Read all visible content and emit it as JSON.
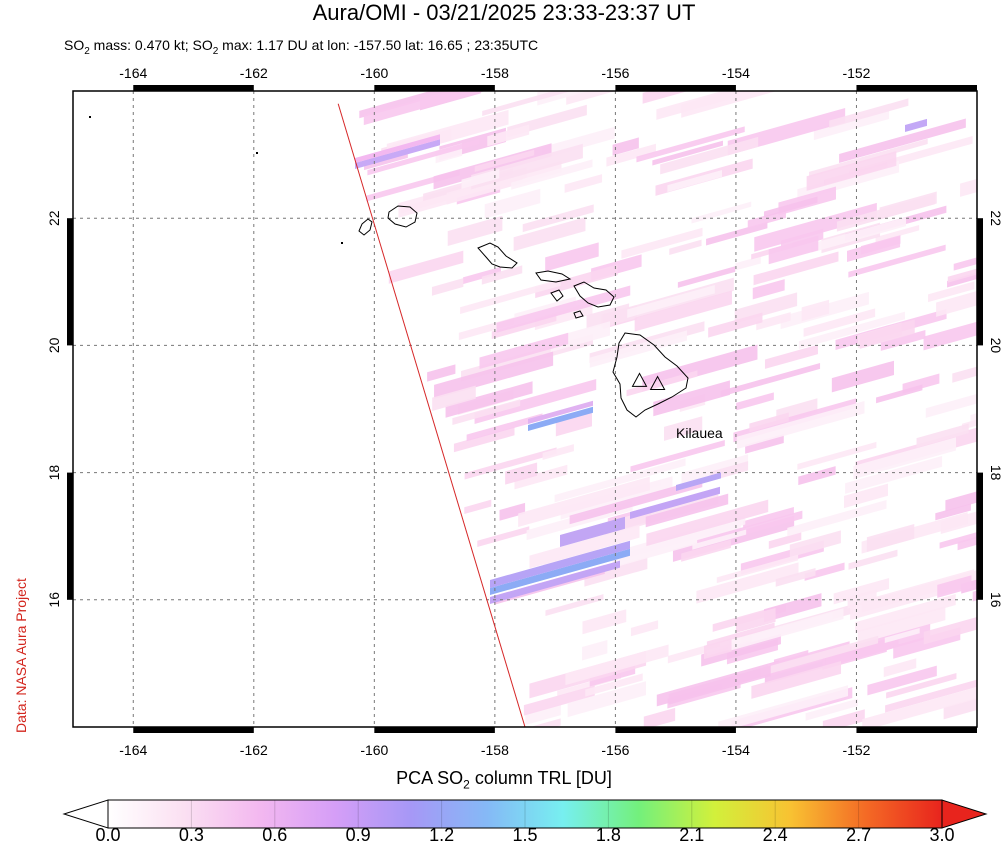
{
  "title": "Aura/OMI - 03/21/2025 23:33-23:37 UT",
  "subtitle": {
    "so2_label": "SO",
    "so2_sub": "2",
    "mass_text": " mass: 0.470 kt; SO",
    "max_text": " max: 1.17 DU at lon: -157.50 lat: 16.65 ; 23:35UTC"
  },
  "credit": "Data: NASA Aura Project",
  "map": {
    "lon_range": [
      -165.0,
      -150.0
    ],
    "lat_range": [
      14.0,
      24.0
    ],
    "lon_ticks": [
      -164,
      -162,
      -160,
      -158,
      -156,
      -154,
      -152
    ],
    "lat_ticks": [
      16,
      18,
      20,
      22
    ],
    "lon_tick_labels": [
      "-164",
      "-162",
      "-160",
      "-158",
      "-156",
      "-154",
      "-152"
    ],
    "lat_tick_labels": [
      "16",
      "18",
      "20",
      "22"
    ],
    "grid": true,
    "swath_edge": {
      "from": [
        -160.6,
        23.8
      ],
      "to": [
        -157.5,
        14.0
      ],
      "color": "#d62728"
    },
    "volcano_label": "Kilauea",
    "volcanoes": [
      [
        -155.6,
        19.45
      ],
      [
        -155.3,
        19.4
      ]
    ]
  },
  "colorbar": {
    "title_pre": "PCA SO",
    "title_sub": "2",
    "title_post": " column TRL [DU]",
    "range": [
      0.0,
      3.0
    ],
    "tick_labels": [
      "0.0",
      "0.3",
      "0.6",
      "0.9",
      "1.2",
      "1.5",
      "1.8",
      "2.1",
      "2.4",
      "2.7",
      "3.0"
    ],
    "colors": [
      "#ffffff",
      "#fbe0f2",
      "#f3b8f0",
      "#d59ef7",
      "#a698f6",
      "#85b9f6",
      "#77eff0",
      "#73f07c",
      "#d2f03b",
      "#f8c232",
      "#f46a25",
      "#e8241d"
    ]
  }
}
